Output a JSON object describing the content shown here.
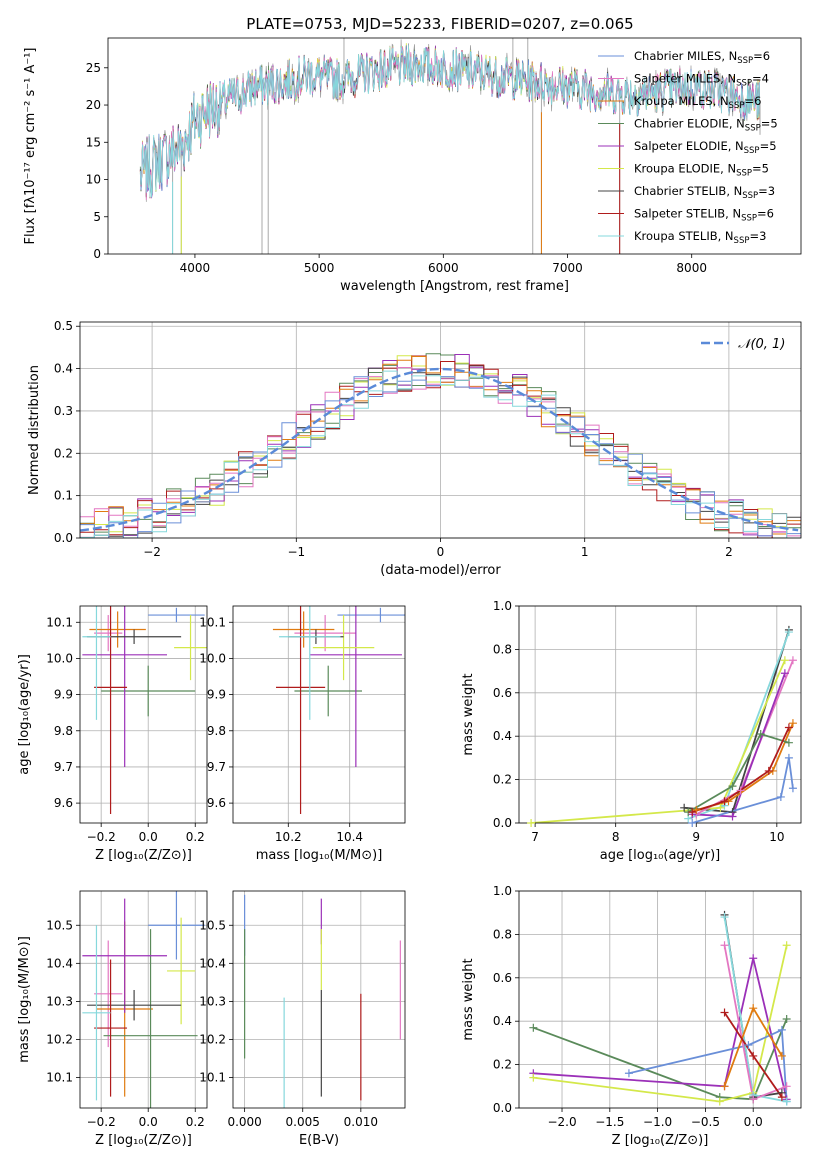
{
  "figure": {
    "title": "PLATE=0753, MJD=52233, FIBERID=0207, z=0.065"
  },
  "colors": {
    "chabrier_miles": "#6a8fd8",
    "salpeter_miles": "#e377c2",
    "kroupa_miles": "#e07b10",
    "chabrier_elodie": "#5a8a5a",
    "salpeter_elodie": "#9b30b8",
    "kroupa_elodie": "#d4e84a",
    "chabrier_stelib": "#444444",
    "salpeter_stelib": "#b01c1c",
    "kroupa_stelib": "#86d8dc",
    "data": "#999999",
    "normal": "#5a8ad8"
  },
  "chart_data": [
    {
      "id": "spectrum",
      "type": "line",
      "xlabel": "wavelength [Angstrom, rest frame]",
      "ylabel": "Flux [fλ10⁻¹⁷ erg cm⁻² s⁻¹ A⁻¹]",
      "xlim": [
        3300,
        8880
      ],
      "ylim": [
        0,
        29
      ],
      "xticks": [
        4000,
        5000,
        6000,
        7000,
        8000
      ],
      "yticks": [
        0,
        5,
        10,
        15,
        20,
        25
      ],
      "grid": false,
      "legend": "top-right",
      "legend_entries": [
        {
          "label": "Chabrier MILES, N",
          "sub": "SSP",
          "suffix": "=6",
          "color": "chabrier_miles"
        },
        {
          "label": "Salpeter MILES, N",
          "sub": "SSP",
          "suffix": "=4",
          "color": "salpeter_miles"
        },
        {
          "label": "Kroupa MILES, N",
          "sub": "SSP",
          "suffix": "=6",
          "color": "kroupa_miles"
        },
        {
          "label": "Chabrier ELODIE, N",
          "sub": "SSP",
          "suffix": "=5",
          "color": "chabrier_elodie"
        },
        {
          "label": "Salpeter ELODIE, N",
          "sub": "SSP",
          "suffix": "=5",
          "color": "salpeter_elodie"
        },
        {
          "label": "Kroupa ELODIE, N",
          "sub": "SSP",
          "suffix": "=5",
          "color": "kroupa_elodie"
        },
        {
          "label": "Chabrier STELIB, N",
          "sub": "SSP",
          "suffix": "=3",
          "color": "chabrier_stelib"
        },
        {
          "label": "Salpeter STELIB, N",
          "sub": "SSP",
          "suffix": "=6",
          "color": "salpeter_stelib"
        },
        {
          "label": "Kroupa STELIB, N",
          "sub": "SSP",
          "suffix": "=3",
          "color": "kroupa_stelib"
        }
      ],
      "continuum": {
        "x": [
          3560,
          3700,
          3900,
          4000,
          4100,
          4300,
          4500,
          4700,
          4900,
          5000,
          5100,
          5200,
          5400,
          5600,
          5800,
          6000,
          6200,
          6400,
          6600,
          6800,
          7000,
          7200,
          7400,
          7600,
          7800,
          8000,
          8200,
          8400,
          8550
        ],
        "y": [
          10.5,
          12.5,
          14.5,
          18,
          19.5,
          21,
          22.5,
          23,
          24,
          24,
          23.5,
          23.5,
          24.5,
          25,
          25.5,
          25,
          24.5,
          24,
          23.5,
          23,
          22.5,
          22,
          21.5,
          21.5,
          22,
          22.5,
          22,
          21,
          20.5
        ]
      },
      "dips": [
        {
          "x": 3820,
          "y": 0
        },
        {
          "x": 3890,
          "y": 0
        },
        {
          "x": 4540,
          "y": 0
        },
        {
          "x": 4590,
          "y": 0
        },
        {
          "x": 6720,
          "y": 0
        },
        {
          "x": 6790,
          "y": 0
        },
        {
          "x": 7420,
          "y": 0
        },
        {
          "x": 8550,
          "y": 16
        }
      ],
      "spikes": [
        {
          "x": 5200,
          "y": 29
        },
        {
          "x": 6560,
          "y": 29
        },
        {
          "x": 6680,
          "y": 29
        }
      ]
    },
    {
      "id": "residuals",
      "type": "line",
      "xlabel": "(data-model)/error",
      "ylabel": "Normed distribution",
      "xlim": [
        -2.5,
        2.5
      ],
      "ylim": [
        0,
        0.51
      ],
      "xticks": [
        -2,
        -1,
        0,
        1,
        2
      ],
      "yticks": [
        0.0,
        0.1,
        0.2,
        0.3,
        0.4,
        0.5
      ],
      "grid": true,
      "legend": "top-right",
      "series_label": "𝒩(0, 1)",
      "bin_width": 0.1
    },
    {
      "id": "age_vs_Z",
      "type": "scatter",
      "xlabel": "Z [log₁₀(Z/Z⊙)]",
      "ylabel": "age  [log₁₀(age/yr)]",
      "xlim": [
        -0.29,
        0.25
      ],
      "ylim": [
        9.545,
        10.145
      ],
      "xticks": [
        -0.2,
        0.0,
        0.2
      ],
      "yticks": [
        9.6,
        9.7,
        9.8,
        9.9,
        10.0,
        10.1
      ],
      "grid": true,
      "points": [
        {
          "color": "chabrier_miles",
          "x": 0.12,
          "xerr": 0.12,
          "y": 10.12,
          "yerr": 0.02
        },
        {
          "color": "salpeter_miles",
          "x": -0.17,
          "xerr": 0.06,
          "y": 10.07,
          "yerr": 0.05
        },
        {
          "color": "kroupa_miles",
          "x": -0.13,
          "xerr": 0.12,
          "y": 10.08,
          "yerr": 0.05
        },
        {
          "color": "chabrier_elodie",
          "x": 0.0,
          "xerr": 0.2,
          "y": 9.91,
          "yerr": 0.07
        },
        {
          "color": "salpeter_elodie",
          "x": -0.1,
          "xerr": 0.18,
          "y": 10.01,
          "yerr": 0.31
        },
        {
          "color": "kroupa_elodie",
          "x": 0.18,
          "xerr": 0.07,
          "y": 10.03,
          "yerr": 0.09
        },
        {
          "color": "chabrier_stelib",
          "x": -0.06,
          "xerr": 0.2,
          "y": 10.06,
          "yerr": 0.02
        },
        {
          "color": "salpeter_stelib",
          "x": -0.16,
          "xerr": 0.07,
          "y": 9.92,
          "yerr": 0.35
        },
        {
          "color": "kroupa_stelib",
          "x": -0.22,
          "xerr": 0.06,
          "y": 10.06,
          "yerr": 0.23
        }
      ]
    },
    {
      "id": "age_vs_mass",
      "type": "scatter",
      "xlabel": "mass [log₁₀(M/M⊙)]",
      "xlim": [
        10.02,
        10.58
      ],
      "ylim": [
        9.545,
        10.145
      ],
      "xticks": [
        10.2,
        10.4
      ],
      "yticks": [
        9.6,
        9.7,
        9.8,
        9.9,
        10.0,
        10.1
      ],
      "grid": true,
      "points": [
        {
          "color": "chabrier_miles",
          "x": 10.5,
          "xerr": 0.14,
          "y": 10.12,
          "yerr": 0.02
        },
        {
          "color": "salpeter_miles",
          "x": 10.32,
          "xerr": 0.1,
          "y": 10.07,
          "yerr": 0.05
        },
        {
          "color": "kroupa_miles",
          "x": 10.25,
          "xerr": 0.1,
          "y": 10.08,
          "yerr": 0.05
        },
        {
          "color": "chabrier_elodie",
          "x": 10.33,
          "xerr": 0.11,
          "y": 9.91,
          "yerr": 0.07
        },
        {
          "color": "salpeter_elodie",
          "x": 10.42,
          "xerr": 0.15,
          "y": 10.01,
          "yerr": 0.31
        },
        {
          "color": "kroupa_elodie",
          "x": 10.38,
          "xerr": 0.1,
          "y": 10.03,
          "yerr": 0.09
        },
        {
          "color": "chabrier_stelib",
          "x": 10.29,
          "xerr": 0.09,
          "y": 10.06,
          "yerr": 0.02
        },
        {
          "color": "salpeter_stelib",
          "x": 10.24,
          "xerr": 0.08,
          "y": 9.92,
          "yerr": 0.35
        },
        {
          "color": "kroupa_stelib",
          "x": 10.27,
          "xerr": 0.1,
          "y": 10.06,
          "yerr": 0.23
        }
      ]
    },
    {
      "id": "weight_vs_age",
      "type": "line",
      "xlabel": "age  [log₁₀(age/yr)]",
      "ylabel": "mass weight",
      "xlim": [
        6.8,
        10.3
      ],
      "ylim": [
        0,
        1.0
      ],
      "xticks": [
        7,
        8,
        9,
        10
      ],
      "yticks": [
        0.0,
        0.2,
        0.4,
        0.6,
        0.8,
        1.0
      ],
      "grid": true,
      "series": [
        {
          "color": "chabrier_stelib",
          "x": [
            8.85,
            9.45,
            10.15
          ],
          "y": [
            0.07,
            0.05,
            0.89
          ]
        },
        {
          "color": "kroupa_stelib",
          "x": [
            8.9,
            9.35,
            10.15
          ],
          "y": [
            0.02,
            0.08,
            0.88
          ]
        },
        {
          "color": "kroupa_elodie",
          "x": [
            6.95,
            9.3,
            10.1
          ],
          "y": [
            0.0,
            0.07,
            0.75
          ]
        },
        {
          "color": "salpeter_miles",
          "x": [
            9.0,
            9.55,
            10.2
          ],
          "y": [
            0.04,
            0.15,
            0.75
          ]
        },
        {
          "color": "salpeter_elodie",
          "x": [
            8.95,
            9.45,
            10.1
          ],
          "y": [
            0.04,
            0.03,
            0.69
          ]
        },
        {
          "color": "kroupa_miles",
          "x": [
            9.0,
            9.4,
            9.95,
            10.2
          ],
          "y": [
            0.06,
            0.1,
            0.24,
            0.46
          ]
        },
        {
          "color": "chabrier_elodie",
          "x": [
            8.9,
            9.45,
            9.8,
            10.15
          ],
          "y": [
            0.05,
            0.17,
            0.41,
            0.37
          ]
        },
        {
          "color": "salpeter_stelib",
          "x": [
            8.95,
            9.35,
            9.9,
            10.15
          ],
          "y": [
            0.05,
            0.1,
            0.24,
            0.44
          ]
        },
        {
          "color": "chabrier_miles",
          "x": [
            8.95,
            10.05,
            10.15,
            10.2
          ],
          "y": [
            0.0,
            0.12,
            0.3,
            0.16
          ]
        }
      ]
    },
    {
      "id": "mass_vs_Z",
      "type": "scatter",
      "xlabel": "Z [log₁₀(Z/Z⊙)]",
      "ylabel": "mass [log₁₀(M/M⊙)]",
      "xlim": [
        -0.29,
        0.25
      ],
      "ylim": [
        10.02,
        10.59
      ],
      "xticks": [
        -0.2,
        0.0,
        0.2
      ],
      "yticks": [
        10.1,
        10.2,
        10.3,
        10.4,
        10.5
      ],
      "grid": true,
      "points": [
        {
          "color": "chabrier_miles",
          "x": 0.12,
          "xerr": 0.12,
          "y": 10.5,
          "yerr": 0.09
        },
        {
          "color": "salpeter_miles",
          "x": -0.17,
          "xerr": 0.06,
          "y": 10.32,
          "yerr": 0.14
        },
        {
          "color": "kroupa_miles",
          "x": -0.1,
          "xerr": 0.12,
          "y": 10.28,
          "yerr": 0.23
        },
        {
          "color": "chabrier_elodie",
          "x": 0.01,
          "xerr": 0.2,
          "y": 10.21,
          "yerr": 0.28
        },
        {
          "color": "salpeter_elodie",
          "x": -0.1,
          "xerr": 0.18,
          "y": 10.42,
          "yerr": 0.15
        },
        {
          "color": "kroupa_elodie",
          "x": 0.14,
          "xerr": 0.06,
          "y": 10.38,
          "yerr": 0.14
        },
        {
          "color": "chabrier_stelib",
          "x": -0.06,
          "xerr": 0.2,
          "y": 10.29,
          "yerr": 0.04
        },
        {
          "color": "salpeter_stelib",
          "x": -0.16,
          "xerr": 0.07,
          "y": 10.23,
          "yerr": 0.18
        },
        {
          "color": "kroupa_stelib",
          "x": -0.22,
          "xerr": 0.06,
          "y": 10.27,
          "yerr": 0.23
        }
      ]
    },
    {
      "id": "mass_vs_ebv",
      "type": "scatter",
      "xlabel": "E(B-V)",
      "xlim": [
        -0.001,
        0.0138
      ],
      "ylim": [
        10.02,
        10.59
      ],
      "xticks": [
        0.0,
        0.005,
        0.01
      ],
      "xticklabels": [
        "0.000",
        "0.005",
        "0.010"
      ],
      "yticks": [
        10.1,
        10.2,
        10.3,
        10.4,
        10.5
      ],
      "grid": true,
      "points": [
        {
          "color": "chabrier_miles",
          "x": 0.0,
          "y": 10.5,
          "yerr": 0.08
        },
        {
          "color": "chabrier_elodie",
          "x": 0.0,
          "y": 10.32,
          "yerr": 0.17
        },
        {
          "color": "kroupa_stelib",
          "x": 0.0034,
          "y": 10.16,
          "yerr": 0.15
        },
        {
          "color": "salpeter_elodie",
          "x": 0.0066,
          "y": 10.51,
          "yerr": 0.06
        },
        {
          "color": "kroupa_elodie",
          "x": 0.0066,
          "y": 10.41,
          "yerr": 0.08
        },
        {
          "color": "chabrier_stelib",
          "x": 0.0066,
          "y": 10.19,
          "yerr": 0.14
        },
        {
          "color": "salpeter_stelib",
          "x": 0.01,
          "y": 10.18,
          "yerr": 0.14
        },
        {
          "color": "salpeter_miles",
          "x": 0.0134,
          "y": 10.33,
          "yerr": 0.13
        }
      ]
    },
    {
      "id": "weight_vs_Z",
      "type": "line",
      "xlabel": "Z [log₁₀(Z/Z⊙)]",
      "ylabel": "mass weight",
      "xlim": [
        -2.45,
        0.5
      ],
      "ylim": [
        0,
        1.0
      ],
      "xticks": [
        -2.0,
        -1.5,
        -1.0,
        -0.5,
        0.0
      ],
      "yticks": [
        0.0,
        0.2,
        0.4,
        0.6,
        0.8,
        1.0
      ],
      "grid": true,
      "series": [
        {
          "color": "chabrier_elodie",
          "x": [
            -2.3,
            -0.35,
            0.0,
            0.35
          ],
          "y": [
            0.37,
            0.05,
            0.04,
            0.41
          ]
        },
        {
          "color": "salpeter_elodie",
          "x": [
            -2.3,
            -0.3,
            0.0,
            0.35
          ],
          "y": [
            0.16,
            0.1,
            0.69,
            0.04
          ]
        },
        {
          "color": "kroupa_elodie",
          "x": [
            -2.3,
            -0.35,
            0.0,
            0.35
          ],
          "y": [
            0.14,
            0.03,
            0.07,
            0.75
          ]
        },
        {
          "color": "chabrier_miles",
          "x": [
            -1.3,
            -0.05,
            0.3,
            0.35
          ],
          "y": [
            0.16,
            0.29,
            0.36,
            0.03
          ]
        },
        {
          "color": "chabrier_stelib",
          "x": [
            -0.3,
            0.0,
            0.3
          ],
          "y": [
            0.89,
            0.05,
            0.07
          ]
        },
        {
          "color": "kroupa_stelib",
          "x": [
            -0.3,
            0.0,
            0.35
          ],
          "y": [
            0.88,
            0.06,
            0.03
          ]
        },
        {
          "color": "salpeter_miles",
          "x": [
            -0.3,
            0.0,
            0.35
          ],
          "y": [
            0.75,
            0.04,
            0.1
          ]
        },
        {
          "color": "kroupa_miles",
          "x": [
            -0.3,
            0.0,
            0.3
          ],
          "y": [
            0.1,
            0.46,
            0.24
          ]
        },
        {
          "color": "salpeter_stelib",
          "x": [
            -0.3,
            0.0,
            0.3
          ],
          "y": [
            0.44,
            0.24,
            0.05
          ]
        }
      ]
    }
  ]
}
